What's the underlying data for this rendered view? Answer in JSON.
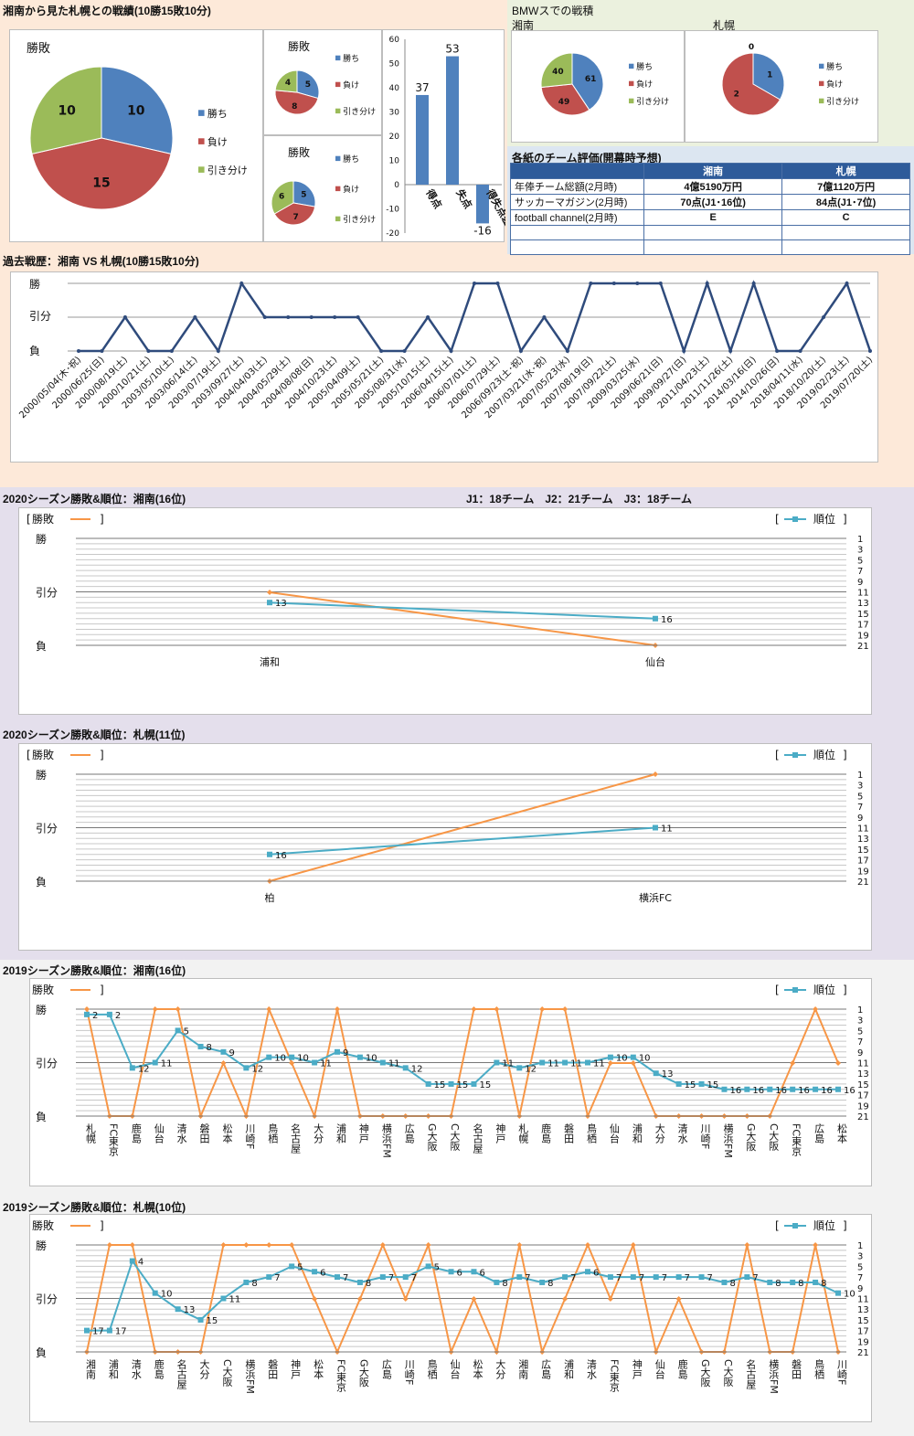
{
  "top": {
    "title": "湘南から見た札幌との戦績(10勝15敗10分)",
    "bmw_title": "BMWスでの戦積",
    "bmw_shonan": "湘南",
    "bmw_sapporo": "札幌",
    "eval_title": "各紙のチーム評価(開幕時予想)"
  },
  "colors": {
    "win": "#4f81bd",
    "lose": "#c0504d",
    "draw": "#9bbb59",
    "rank": "#4bacc6",
    "result": "#f79646",
    "bg_top": "#fde9d9",
    "bg_2020": "#e4dfec",
    "bg_2019": "#f2f2f2",
    "bg_bmw": "#ebf1de",
    "bg_eval": "#dce6f1"
  },
  "chart_data": [
    {
      "id": "pie_total",
      "type": "pie",
      "title": "勝敗",
      "labels": [
        "勝ち",
        "負け",
        "引き分け"
      ],
      "values": [
        10,
        15,
        10
      ]
    },
    {
      "id": "pie_a",
      "type": "pie",
      "title": "勝敗",
      "labels": [
        "勝ち",
        "負け",
        "引き分け"
      ],
      "values": [
        5,
        8,
        4
      ]
    },
    {
      "id": "pie_b",
      "type": "pie",
      "title": "勝敗",
      "labels": [
        "勝ち",
        "負け",
        "引き分け"
      ],
      "values": [
        5,
        7,
        6
      ]
    },
    {
      "id": "goals",
      "type": "bar",
      "categories": [
        "得点",
        "失点",
        "得失点差"
      ],
      "values": [
        37,
        53,
        -16
      ],
      "ylim": [
        -20,
        60
      ],
      "yticks": [
        -20,
        -10,
        0,
        10,
        20,
        30,
        40,
        50,
        60
      ]
    },
    {
      "id": "pie_bmw_shonan",
      "type": "pie",
      "labels": [
        "勝ち",
        "負け",
        "引き分け"
      ],
      "values": [
        61,
        49,
        40
      ]
    },
    {
      "id": "pie_bmw_sapporo",
      "type": "pie",
      "labels": [
        "勝ち",
        "負け",
        "引き分け"
      ],
      "values": [
        1,
        2,
        0
      ]
    },
    {
      "id": "history",
      "type": "line",
      "title": "過去戦歴：湘南 VS 札幌(10勝15敗10分)",
      "ylabels": [
        "勝",
        "引分",
        "負"
      ],
      "x": [
        "2000/05/04(木･祝)",
        "2000/06/25(日)",
        "2000/08/19(土)",
        "2000/10/21(土)",
        "2003/05/10(土)",
        "2003/06/14(土)",
        "2003/07/19(土)",
        "2003/09/27(土)",
        "2004/04/03(土)",
        "2004/05/29(土)",
        "2004/08/08(日)",
        "2004/10/23(土)",
        "2005/04/09(土)",
        "2005/05/21(土)",
        "2005/08/31(水)",
        "2005/10/15(土)",
        "2006/04/15(土)",
        "2006/07/01(土)",
        "2006/07/29(土)",
        "2006/09/23(土･祝)",
        "2007/03/21(水･祝)",
        "2007/05/23(水)",
        "2007/08/19(日)",
        "2007/09/22(土)",
        "2009/03/25(水)",
        "2009/06/21(日)",
        "2009/09/27(日)",
        "2011/04/23(土)",
        "2011/11/26(土)",
        "2014/03/16(日)",
        "2014/10/26(日)",
        "2018/04/11(水)",
        "2018/10/20(土)",
        "2019/02/23(土)",
        "2019/07/20(土)"
      ],
      "results": [
        0,
        0,
        1,
        0,
        0,
        1,
        0,
        2,
        1,
        1,
        1,
        1,
        1,
        0,
        0,
        1,
        0,
        2,
        2,
        0,
        1,
        0,
        2,
        2,
        2,
        2,
        0,
        2,
        0,
        2,
        0,
        0,
        1,
        2,
        0
      ]
    },
    {
      "id": "s2020_shonan",
      "type": "line",
      "title": "2020シーズン勝敗&順位：湘南(16位)",
      "note": "J1：18チーム　J2：21チーム　J3：18チーム",
      "x": [
        "浦和",
        "仙台"
      ],
      "results": [
        1,
        0
      ],
      "ranks": [
        13,
        16
      ],
      "legend_result": "勝敗",
      "legend_rank": "順位",
      "ylabels": [
        "勝",
        "引分",
        "負"
      ],
      "rank_ticks": [
        1,
        3,
        5,
        7,
        9,
        11,
        13,
        15,
        17,
        19,
        21
      ]
    },
    {
      "id": "s2020_sapporo",
      "type": "line",
      "title": "2020シーズン勝敗&順位：札幌(11位)",
      "x": [
        "柏",
        "横浜FC"
      ],
      "results": [
        0,
        2
      ],
      "ranks": [
        16,
        11
      ],
      "legend_result": "勝敗",
      "legend_rank": "順位",
      "ylabels": [
        "勝",
        "引分",
        "負"
      ],
      "rank_ticks": [
        1,
        3,
        5,
        7,
        9,
        11,
        13,
        15,
        17,
        19,
        21
      ]
    },
    {
      "id": "s2019_shonan",
      "type": "line",
      "title": "2019シーズン勝敗&順位：湘南(16位)",
      "x": [
        "札幌",
        "FC東京",
        "鹿島",
        "仙台",
        "清水",
        "磐田",
        "松本",
        "川崎F",
        "鳥栖",
        "名古屋",
        "大分",
        "浦和",
        "神戸",
        "横浜FM",
        "広島",
        "G大阪",
        "C大阪",
        "名古屋",
        "神戸",
        "札幌",
        "鹿島",
        "磐田",
        "鳥栖",
        "仙台",
        "浦和",
        "大分",
        "清水",
        "川崎F",
        "横浜FM",
        "G大阪",
        "C大阪",
        "FC東京",
        "広島",
        "松本"
      ],
      "results": [
        2,
        0,
        0,
        2,
        2,
        0,
        1,
        0,
        2,
        1,
        0,
        2,
        0,
        0,
        0,
        0,
        0,
        2,
        2,
        0,
        2,
        2,
        0,
        1,
        1,
        0,
        0,
        0,
        0,
        0,
        0,
        1,
        2,
        1
      ],
      "ranks": [
        2,
        2,
        12,
        11,
        5,
        8,
        9,
        12,
        10,
        10,
        11,
        9,
        10,
        11,
        12,
        15,
        15,
        15,
        11,
        12,
        11,
        11,
        11,
        10,
        10,
        13,
        15,
        15,
        16,
        16,
        16,
        16,
        16,
        16
      ],
      "legend_result": "勝敗",
      "legend_rank": "順位",
      "ylabels": [
        "勝",
        "引分",
        "負"
      ],
      "rank_ticks": [
        1,
        3,
        5,
        7,
        9,
        11,
        13,
        15,
        17,
        19,
        21
      ]
    },
    {
      "id": "s2019_sapporo",
      "type": "line",
      "title": "2019シーズン勝敗&順位：札幌(10位)",
      "x": [
        "湘南",
        "浦和",
        "清水",
        "鹿島",
        "名古屋",
        "大分",
        "C大阪",
        "横浜FM",
        "磐田",
        "神戸",
        "松本",
        "FC東京",
        "G大阪",
        "広島",
        "川崎F",
        "鳥栖",
        "仙台",
        "松本",
        "大分",
        "湘南",
        "広島",
        "浦和",
        "清水",
        "FC東京",
        "神戸",
        "仙台",
        "鹿島",
        "G大阪",
        "C大阪",
        "名古屋",
        "横浜FM",
        "磐田",
        "鳥栖",
        "川崎F"
      ],
      "results": [
        0,
        2,
        2,
        0,
        0,
        0,
        2,
        2,
        2,
        2,
        1,
        0,
        1,
        2,
        1,
        2,
        0,
        1,
        0,
        2,
        0,
        1,
        2,
        1,
        2,
        0,
        1,
        0,
        0,
        2,
        0,
        0,
        2,
        0
      ],
      "ranks": [
        17,
        17,
        4,
        10,
        13,
        15,
        11,
        8,
        7,
        5,
        6,
        7,
        8,
        7,
        7,
        5,
        6,
        6,
        8,
        7,
        8,
        7,
        6,
        7,
        7,
        7,
        7,
        7,
        8,
        7,
        8,
        8,
        8,
        10
      ],
      "legend_result": "勝敗",
      "legend_rank": "順位",
      "ylabels": [
        "勝",
        "引分",
        "負"
      ],
      "rank_ticks": [
        1,
        3,
        5,
        7,
        9,
        11,
        13,
        15,
        17,
        19,
        21
      ]
    }
  ],
  "eval": {
    "headers": [
      "",
      "湘南",
      "札幌"
    ],
    "rows": [
      [
        "年俸チーム総額(2月時)",
        "4億5190万円",
        "7億1120万円"
      ],
      [
        "サッカーマガジン(2月時)",
        "70点(J1･16位)",
        "84点(J1･7位)"
      ],
      [
        "football channel(2月時)",
        "E",
        "C"
      ],
      [
        "",
        "",
        ""
      ],
      [
        "",
        "",
        ""
      ]
    ]
  }
}
